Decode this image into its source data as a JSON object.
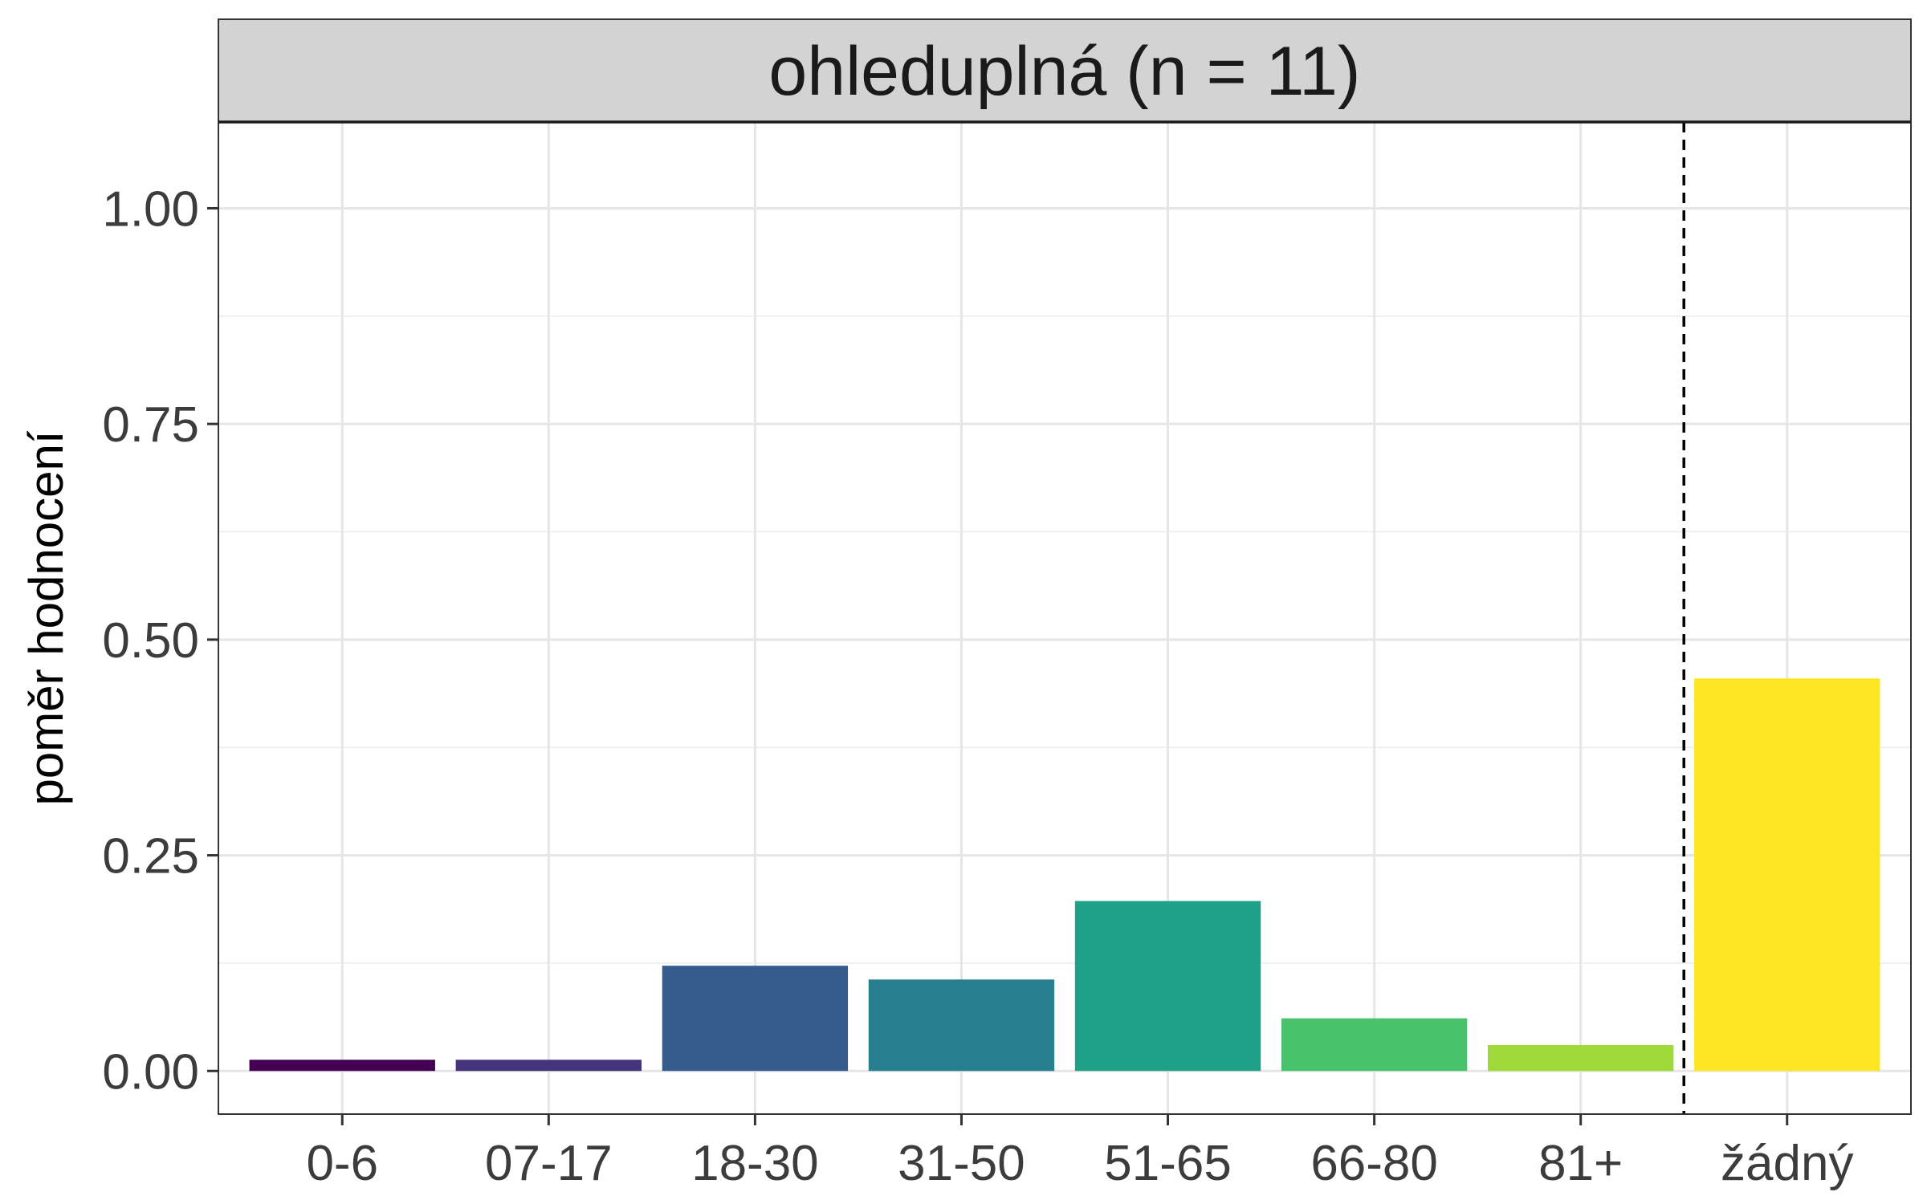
{
  "chart_data": {
    "type": "bar",
    "facet_title": "ohleduplná (n = 11)",
    "categories": [
      "0-6",
      "07-17",
      "18-30",
      "31-50",
      "51-65",
      "66-80",
      "81+",
      "žádný"
    ],
    "values": [
      0.013,
      0.013,
      0.122,
      0.106,
      0.197,
      0.061,
      0.03,
      0.455
    ],
    "colors": [
      "#440154",
      "#46337E",
      "#365C8D",
      "#277F8E",
      "#1FA187",
      "#4AC16D",
      "#9FDA3A",
      "#FDE725"
    ],
    "xlabel": "",
    "ylabel": "poměr hodnocení",
    "ylim": [
      -0.05,
      1.1
    ],
    "yticks": [
      0.0,
      0.25,
      0.5,
      0.75,
      1.0
    ],
    "ytick_labels": [
      "0.00",
      "0.25",
      "0.50",
      "0.75",
      "1.00"
    ],
    "grid": true,
    "separator": {
      "style": "dashed",
      "between": [
        "81+",
        "žádný"
      ]
    },
    "legend": "none"
  }
}
